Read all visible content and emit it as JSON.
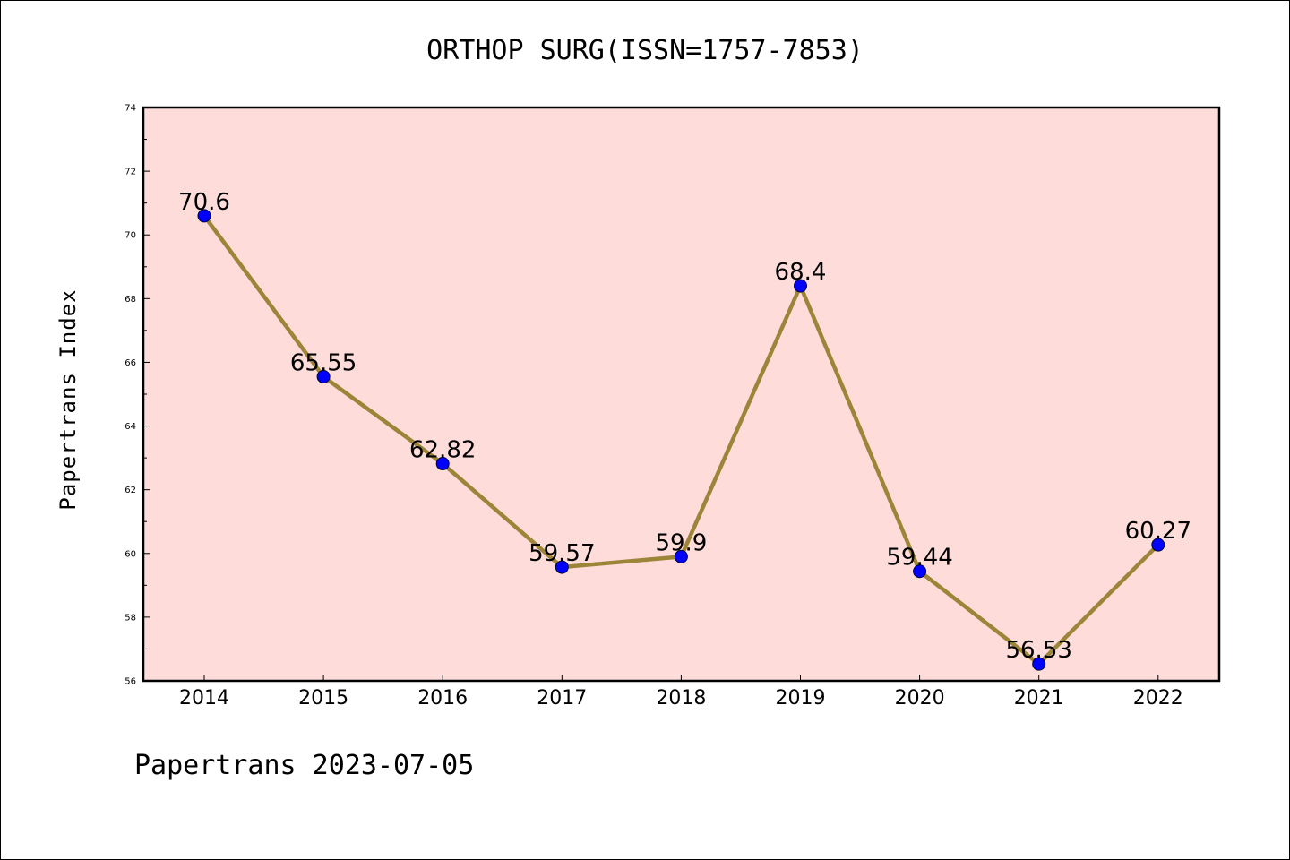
{
  "chart_data": {
    "type": "line",
    "title": "ORTHOP SURG(ISSN=1757-7853)",
    "xlabel": "",
    "ylabel": "Papertrans Index",
    "footer": "Papertrans 2023-07-05",
    "x": [
      "2014",
      "2015",
      "2016",
      "2017",
      "2018",
      "2019",
      "2020",
      "2021",
      "2022"
    ],
    "series": [
      {
        "values": [
          70.6,
          65.55,
          62.82,
          59.57,
          59.9,
          68.4,
          59.44,
          56.53,
          60.27
        ],
        "labels": [
          "70.6",
          "65.55",
          "62.82",
          "59.57",
          "59.9",
          "68.4",
          "59.44",
          "56.53",
          "60.27"
        ]
      }
    ],
    "ylim": [
      56,
      74
    ],
    "yticks": [
      "56",
      "58",
      "60",
      "62",
      "64",
      "66",
      "68",
      "70",
      "72",
      "74"
    ],
    "grid": false,
    "colors": {
      "plot_background": "#fddcd9",
      "line": "#9c8438",
      "marker": "#0000ff",
      "axis": "#000000"
    }
  }
}
